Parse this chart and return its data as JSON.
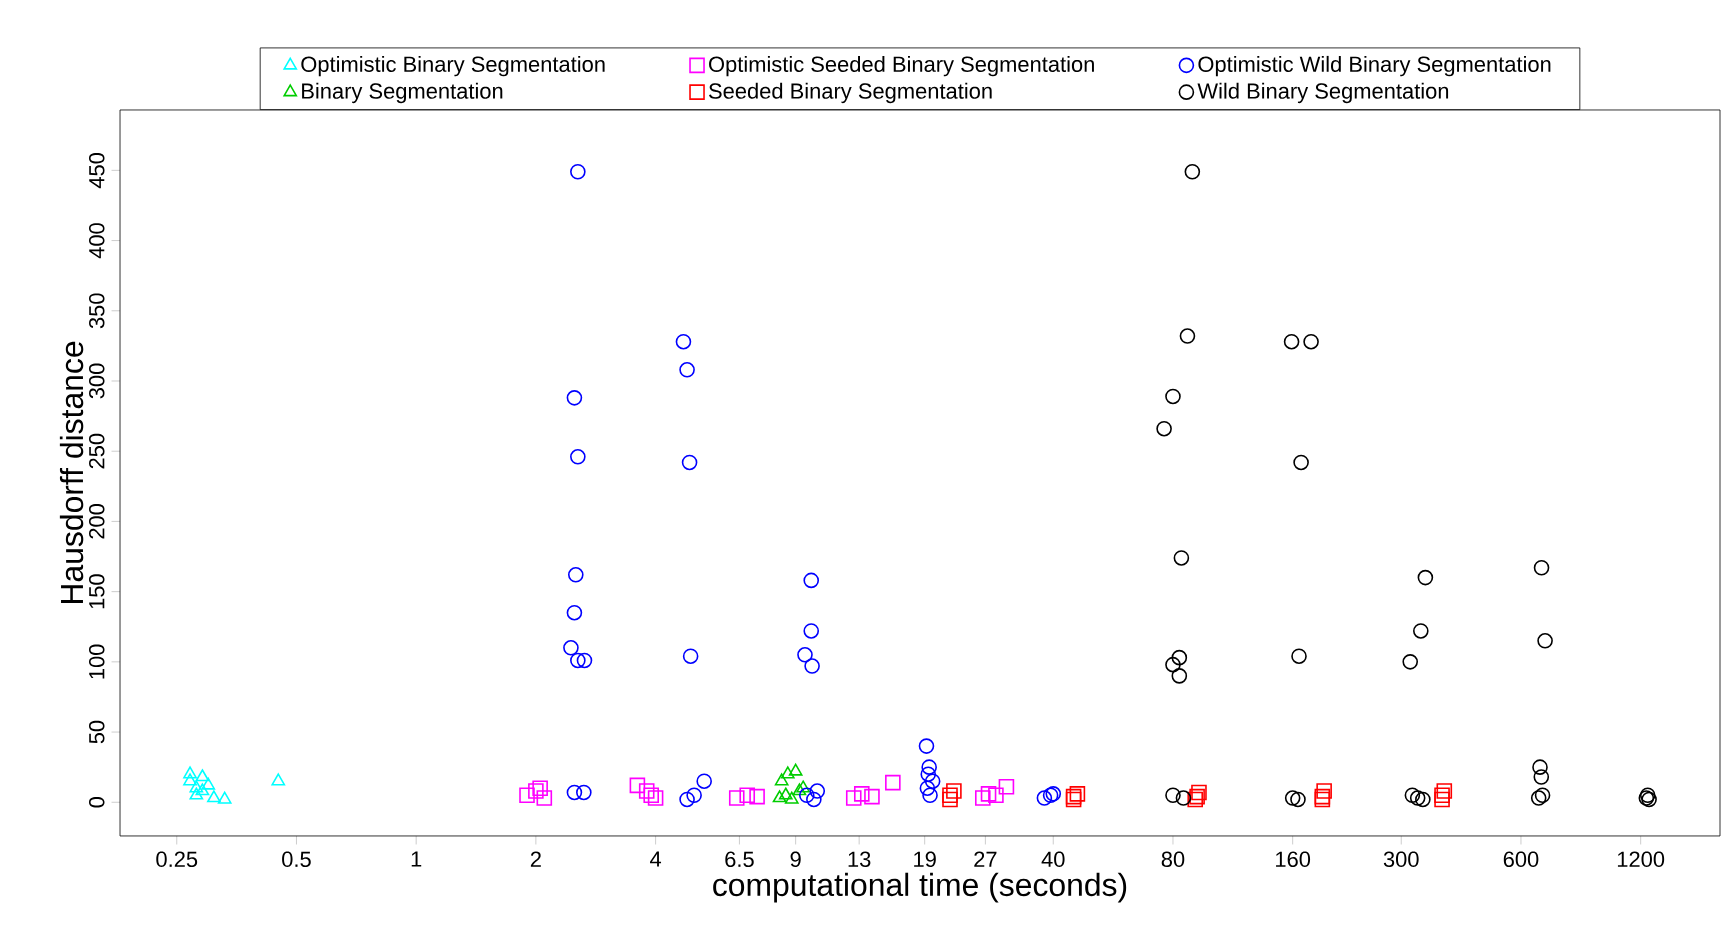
{
  "chart_data": {
    "type": "scatter",
    "xlabel": "computational time (seconds)",
    "ylabel": "Hausdorff distance",
    "log": "x",
    "legend": "top",
    "xlim": [
      0.18,
      1900
    ],
    "ylim": [
      -24,
      493
    ],
    "xticks": [
      0.25,
      0.5,
      1,
      2,
      4,
      6.5,
      9,
      13,
      19,
      27,
      40,
      80,
      160,
      300,
      600,
      1200
    ],
    "yticks": [
      0,
      50,
      100,
      150,
      200,
      250,
      300,
      350,
      400,
      450
    ],
    "series": [
      {
        "name": "Optimistic Binary Segmentation",
        "color": "#00ffff",
        "marker": "triangle",
        "x": [
          0.27,
          0.27,
          0.28,
          0.28,
          0.29,
          0.29,
          0.3,
          0.31,
          0.33,
          0.45
        ],
        "values": [
          20,
          15,
          10,
          5,
          18,
          8,
          12,
          3,
          2,
          15
        ]
      },
      {
        "name": "Binary Segmentation",
        "color": "#00cd00",
        "marker": "triangle",
        "x": [
          8.3,
          8.6,
          9.0,
          8.5,
          8.8,
          9.2,
          9.4,
          8.2
        ],
        "values": [
          15,
          20,
          22,
          5,
          2,
          8,
          10,
          3
        ]
      },
      {
        "name": "Optimistic Seeded Binary Segmentation",
        "color": "#ff00ff",
        "marker": "square",
        "x": [
          1.9,
          2.0,
          2.05,
          2.1,
          3.6,
          3.8,
          3.9,
          4.0,
          6.4,
          6.8,
          7.2,
          12.6,
          13.2,
          14.0,
          15.8,
          26.6,
          27.5,
          28.7,
          30.5
        ],
        "values": [
          5,
          8,
          10,
          3,
          12,
          8,
          5,
          3,
          3,
          5,
          4,
          3,
          6,
          4,
          14,
          3,
          6,
          5,
          11
        ]
      },
      {
        "name": "Seeded Binary Segmentation",
        "color": "#ff0000",
        "marker": "square",
        "x": [
          22,
          22,
          22.5,
          45,
          45,
          46,
          91,
          92,
          93,
          190,
          190,
          192,
          380,
          380,
          385
        ],
        "values": [
          2,
          5,
          8,
          2,
          4,
          6,
          2,
          4,
          7,
          2,
          4,
          8,
          2,
          5,
          8
        ]
      },
      {
        "name": "Optimistic Wild Binary Segmentation",
        "color": "#0000ff",
        "marker": "circle",
        "x": [
          2.55,
          2.5,
          2.55,
          2.52,
          2.5,
          2.45,
          2.55,
          2.65,
          2.5,
          2.64,
          4.7,
          4.8,
          4.87,
          4.9,
          4.8,
          5.0,
          5.3,
          9.85,
          9.85,
          9.5,
          9.9,
          9.6,
          10,
          10.2,
          19.2,
          19.5,
          19.4,
          19.9,
          19.3,
          19.6,
          39.4,
          38,
          40
        ],
        "values": [
          449,
          288,
          246,
          162,
          135,
          110,
          101,
          101,
          7,
          7,
          328,
          308,
          242,
          104,
          2,
          5,
          15,
          158,
          122,
          105,
          97,
          5,
          2,
          8,
          40,
          25,
          20,
          15,
          10,
          5,
          5,
          3,
          6
        ]
      },
      {
        "name": "Wild Binary Segmentation",
        "color": "#000000",
        "marker": "circle",
        "x": [
          89.5,
          87,
          80,
          76,
          84,
          80,
          83,
          83,
          80,
          85,
          159,
          178,
          168,
          166,
          160,
          165,
          345,
          336,
          316,
          320,
          330,
          340,
          676,
          690,
          670,
          675,
          680,
          665,
          1250,
          1240,
          1260
        ],
        "values": [
          449,
          332,
          289,
          266,
          174,
          98,
          103,
          90,
          5,
          3,
          328,
          328,
          242,
          104,
          3,
          2,
          160,
          122,
          100,
          5,
          3,
          2,
          167,
          115,
          25,
          18,
          5,
          3,
          5,
          3,
          2
        ]
      }
    ]
  }
}
